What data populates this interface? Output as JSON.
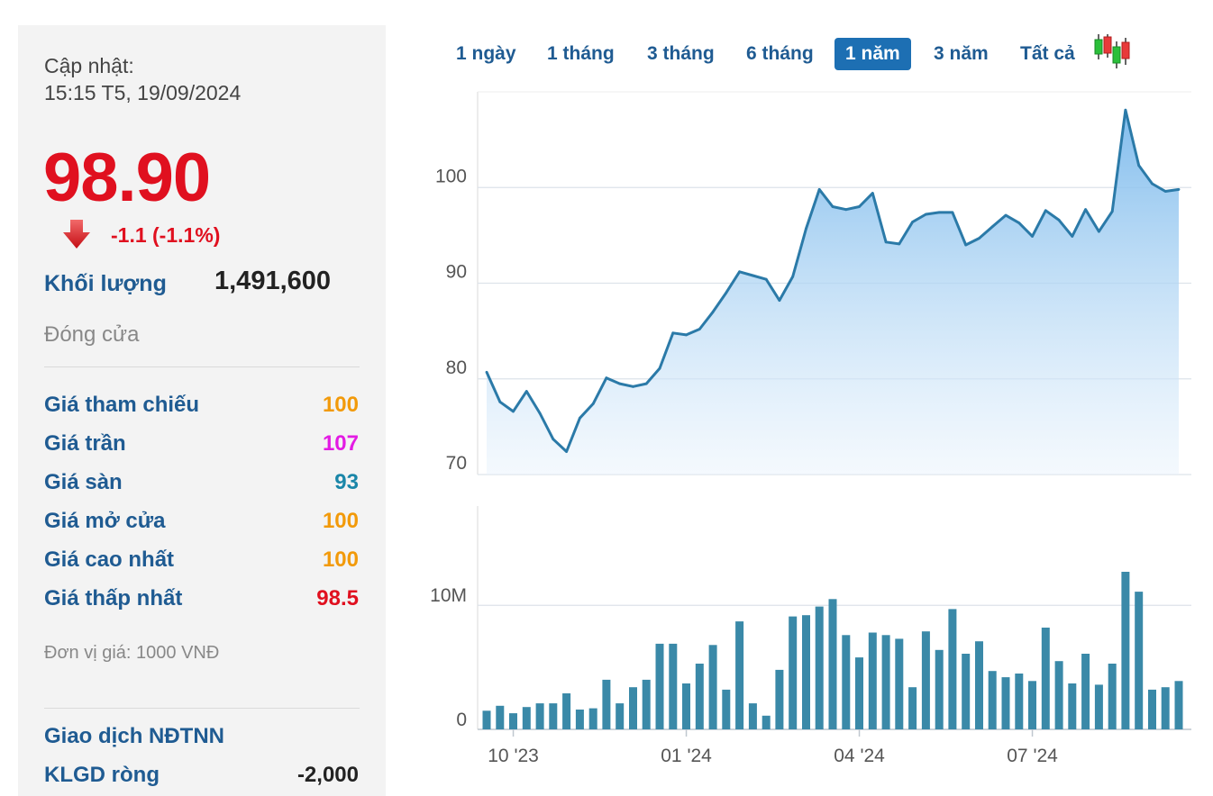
{
  "quote": {
    "update_label": "Cập nhật:",
    "update_time": "15:15 T5, 19/09/2024",
    "price": "98.90",
    "change": "-1.1 (-1.1%)",
    "volume_label": "Khối lượng",
    "volume_value": "1,491,600",
    "status": "Đóng cửa",
    "rows": [
      {
        "label": "Giá tham chiếu",
        "value": "100",
        "color": "#f29a0a"
      },
      {
        "label": "Giá trần",
        "value": "107",
        "color": "#e31be3"
      },
      {
        "label": "Giá sàn",
        "value": "93",
        "color": "#1a86a8"
      },
      {
        "label": "Giá mở cửa",
        "value": "100",
        "color": "#f29a0a"
      },
      {
        "label": "Giá cao nhất",
        "value": "100",
        "color": "#f29a0a"
      },
      {
        "label": "Giá thấp nhất",
        "value": "98.5",
        "color": "#e0101f"
      }
    ],
    "unit": "Đơn vị giá: 1000 VNĐ",
    "foreign_title": "Giao dịch NĐTNN",
    "foreign_label": "KLGD ròng",
    "foreign_value": "-2,000"
  },
  "range_tabs": [
    {
      "label": "1 ngày",
      "active": false
    },
    {
      "label": "1 tháng",
      "active": false
    },
    {
      "label": "3 tháng",
      "active": false
    },
    {
      "label": "6 tháng",
      "active": false
    },
    {
      "label": "1 năm",
      "active": true
    },
    {
      "label": "3 năm",
      "active": false
    },
    {
      "label": "Tất cả",
      "active": false
    }
  ],
  "candlestick_icon": "candlestick-icon",
  "colors": {
    "price_up": "#e0101f",
    "line": "#2b7aa8",
    "area_top": "#7ab9ec",
    "bar": "#3a89a8"
  },
  "chart_data": [
    {
      "type": "area",
      "title": "",
      "y_ticks": [
        70,
        80,
        90,
        100
      ],
      "ylim": [
        70,
        110
      ],
      "x_tick_labels": [
        "10 '23",
        "01 '24",
        "04 '24",
        "07 '24"
      ],
      "x_tick_positions": [
        2,
        15,
        28,
        41
      ],
      "grid": true,
      "x": [
        0,
        1,
        2,
        3,
        4,
        5,
        6,
        7,
        8,
        9,
        10,
        11,
        12,
        13,
        14,
        15,
        16,
        17,
        18,
        19,
        20,
        21,
        22,
        23,
        24,
        25,
        26,
        27,
        28,
        29,
        30,
        31,
        32,
        33,
        34,
        35,
        36,
        37,
        38,
        39,
        40,
        41,
        42,
        43,
        44,
        45,
        46,
        47,
        48,
        49,
        50,
        51,
        52
      ],
      "values": [
        80.7,
        77.6,
        76.6,
        78.7,
        76.4,
        73.7,
        72.4,
        75.9,
        77.4,
        80.1,
        79.5,
        79.2,
        79.5,
        81.1,
        84.8,
        84.6,
        85.2,
        87.0,
        89.0,
        91.2,
        90.8,
        90.4,
        88.2,
        90.7,
        95.7,
        99.8,
        98.0,
        97.7,
        98.0,
        99.4,
        94.3,
        94.1,
        96.4,
        97.2,
        97.4,
        97.4,
        94.0,
        94.7,
        95.9,
        97.1,
        96.3,
        94.9,
        97.6,
        96.6,
        94.9,
        97.7,
        95.4,
        97.5,
        108.1,
        102.3,
        100.4,
        99.6,
        99.8
      ]
    },
    {
      "type": "bar",
      "title": "",
      "y_ticks": [
        0,
        10
      ],
      "y_tick_labels": [
        "0",
        "10M"
      ],
      "ylim": [
        0,
        18
      ],
      "x_tick_labels": [
        "10 '23",
        "01 '24",
        "04 '24",
        "07 '24"
      ],
      "x_tick_positions": [
        2,
        15,
        28,
        41
      ],
      "grid": true,
      "x": [
        0,
        1,
        2,
        3,
        4,
        5,
        6,
        7,
        8,
        9,
        10,
        11,
        12,
        13,
        14,
        15,
        16,
        17,
        18,
        19,
        20,
        21,
        22,
        23,
        24,
        25,
        26,
        27,
        28,
        29,
        30,
        31,
        32,
        33,
        34,
        35,
        36,
        37,
        38,
        39,
        40,
        41,
        42,
        43,
        44,
        45,
        46,
        47,
        48,
        49,
        50,
        51,
        52
      ],
      "values": [
        1.5,
        1.9,
        1.3,
        1.8,
        2.1,
        2.1,
        2.9,
        1.6,
        1.7,
        4.0,
        2.1,
        3.4,
        4.0,
        6.9,
        6.9,
        3.7,
        5.3,
        6.8,
        3.2,
        8.7,
        2.1,
        1.1,
        4.8,
        9.1,
        9.2,
        9.9,
        10.5,
        7.6,
        5.8,
        7.8,
        7.6,
        7.3,
        3.4,
        7.9,
        6.4,
        9.7,
        6.1,
        7.1,
        4.7,
        4.2,
        4.5,
        3.9,
        8.2,
        5.5,
        3.7,
        6.1,
        3.6,
        5.3,
        12.7,
        11.1,
        3.2,
        3.4,
        3.9
      ]
    }
  ]
}
